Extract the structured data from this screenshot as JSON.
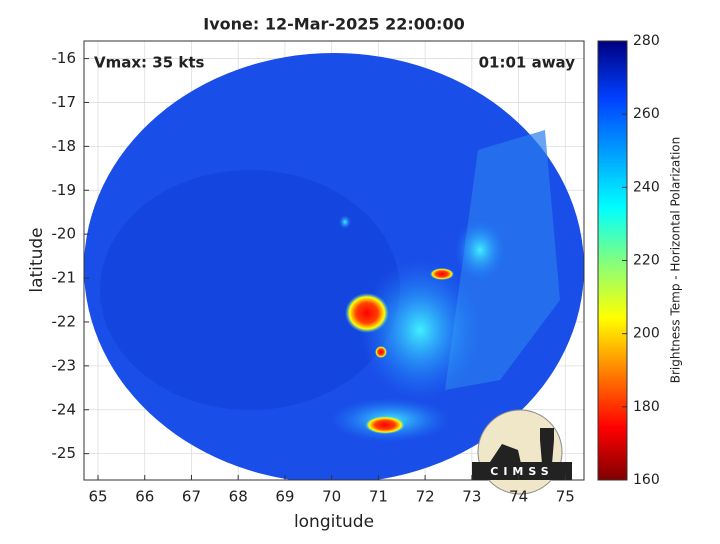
{
  "chart_data": {
    "type": "image",
    "title": "Ivone: 12-Mar-2025 22:00:00",
    "annotations": [
      "Vmax: 35 kts",
      "01:01 away"
    ],
    "xlabel": "longitude",
    "ylabel": "latitude",
    "xlim": [
      64.7,
      75.4
    ],
    "xticks": [
      65,
      66,
      67,
      68,
      69,
      70,
      71,
      72,
      73,
      74,
      75
    ],
    "ylim": [
      -25.6,
      -15.6
    ],
    "yticks": [
      -16,
      -17,
      -18,
      -19,
      -20,
      -21,
      -22,
      -23,
      -24,
      -25
    ],
    "grid": true,
    "colorbar_label": "Brightness Temp - Horizontal Polarization",
    "clim": [
      160,
      280
    ],
    "cticks": [
      160,
      180,
      200,
      220,
      240,
      260,
      280
    ],
    "logo_text": "CIMSS"
  }
}
